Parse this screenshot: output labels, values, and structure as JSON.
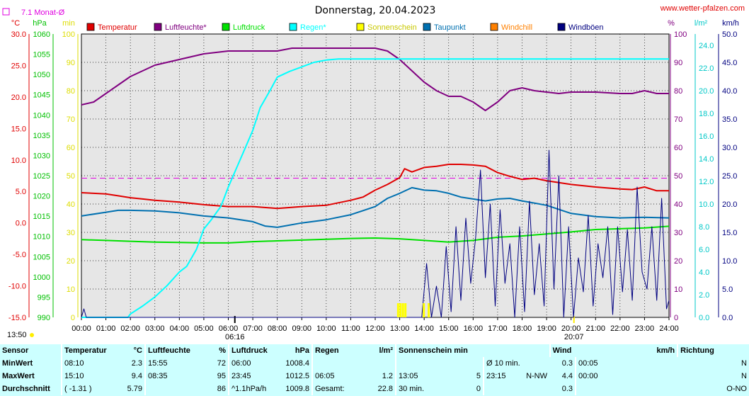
{
  "header": {
    "title": "Donnerstag, 20.04.2023",
    "site": "www.wetter-pfalzen.com",
    "monthly_avg": "7.1 Monat-Ø",
    "current_time": "13:50"
  },
  "axis_units": {
    "temp": "°C",
    "pressure": "hPa",
    "minutes": "min",
    "percent": "%",
    "rain": "l/m²",
    "wind": "km/h"
  },
  "legend": [
    {
      "label": "Temperatur",
      "color": "#e00000"
    },
    {
      "label": "Luftfeuchte*",
      "color": "#800080"
    },
    {
      "label": "Luftdruck",
      "color": "#00e000"
    },
    {
      "label": "Regen*",
      "color": "#00ffff"
    },
    {
      "label": "Sonnenschein",
      "color": "#ffff00"
    },
    {
      "label": "Taupunkt",
      "color": "#0070b0"
    },
    {
      "label": "Windchill",
      "color": "#ff8000"
    },
    {
      "label": "Windböen",
      "color": "#000080"
    }
  ],
  "chart_data": {
    "type": "line",
    "title": "Donnerstag, 20.04.2023",
    "x_ticks": [
      "00:00",
      "01:00",
      "02:00",
      "03:00",
      "04:00",
      "05:00",
      "06:00",
      "07:00",
      "08:00",
      "09:00",
      "10:00",
      "11:00",
      "12:00",
      "13:00",
      "14:00",
      "15:00",
      "16:00",
      "17:00",
      "18:00",
      "19:00",
      "20:00",
      "21:00",
      "22:00",
      "23:00",
      "24:00"
    ],
    "x_markers": [
      "06:16",
      "20:07"
    ],
    "axes": {
      "temp_c": {
        "range": [
          -15,
          30
        ],
        "ticks": [
          "30.0",
          "25.0",
          "20.0",
          "15.0",
          "10.0",
          "5.0",
          "0.0",
          "-5.0",
          "-10.0",
          "-15.0"
        ]
      },
      "pressure_hpa": {
        "range": [
          990,
          1060
        ],
        "ticks": [
          "1060",
          "1055",
          "1050",
          "1045",
          "1040",
          "1035",
          "1030",
          "1025",
          "1020",
          "1015",
          "1010",
          "1005",
          "1000",
          "995",
          "990"
        ]
      },
      "sun_min": {
        "range": [
          0,
          100
        ],
        "ticks": [
          "100",
          "90",
          "80",
          "70",
          "60",
          "50",
          "40",
          "30",
          "20",
          "10",
          "0"
        ]
      },
      "humidity_pct": {
        "range": [
          0,
          100
        ],
        "ticks": [
          "100",
          "90",
          "80",
          "70",
          "60",
          "50",
          "40",
          "30",
          "20",
          "10",
          "0"
        ]
      },
      "rain_lm2": {
        "range": [
          0,
          25
        ],
        "ticks": [
          "24.0",
          "22.0",
          "20.0",
          "18.0",
          "16.0",
          "14.0",
          "12.0",
          "10.0",
          "8.0",
          "6.0",
          "4.0",
          "2.0",
          "0.0"
        ]
      },
      "wind_kmh": {
        "range": [
          0,
          50
        ],
        "ticks": [
          "50.0",
          "45.0",
          "40.0",
          "35.0",
          "30.0",
          "25.0",
          "20.0",
          "15.0",
          "10.0",
          "5.0",
          "0.0"
        ]
      }
    },
    "monthly_avg_temp": 7.1,
    "series": [
      {
        "name": "Temperatur",
        "axis": "temp_c",
        "color": "#e00000",
        "x": [
          0,
          0.5,
          1,
          1.5,
          2,
          2.5,
          3,
          4,
          5,
          6,
          7,
          8,
          9,
          10,
          11,
          11.5,
          12,
          12.5,
          13,
          13.2,
          13.5,
          14,
          14.5,
          15,
          15.5,
          16,
          16.5,
          17,
          17.5,
          18,
          18.5,
          19,
          19.5,
          20,
          21,
          22,
          22.5,
          23,
          23.5,
          24
        ],
        "y": [
          4.8,
          4.7,
          4.6,
          4.3,
          4.0,
          3.8,
          3.6,
          3.3,
          2.9,
          2.6,
          2.6,
          2.3,
          2.6,
          2.8,
          3.6,
          4.1,
          5.2,
          6.1,
          7.2,
          8.6,
          8.1,
          8.8,
          9.0,
          9.3,
          9.3,
          9.2,
          9.0,
          8.0,
          7.4,
          6.9,
          7.1,
          6.7,
          6.4,
          6.1,
          5.7,
          5.4,
          5.3,
          5.7,
          5.1,
          5.1
        ]
      },
      {
        "name": "Luftfeuchte*",
        "axis": "humidity_pct",
        "color": "#800080",
        "x": [
          0,
          0.5,
          1,
          1.5,
          2,
          2.5,
          3,
          4,
          5,
          6,
          7,
          8,
          8.6,
          9,
          10,
          11,
          12,
          12.5,
          13,
          13.5,
          14,
          14.5,
          15,
          15.5,
          16,
          16.5,
          17,
          17.5,
          18,
          18.5,
          19,
          19.5,
          20,
          21,
          22,
          22.5,
          23,
          23.5,
          24
        ],
        "y": [
          75,
          76,
          79,
          82,
          85,
          87,
          89,
          91,
          93,
          94,
          94,
          94,
          95,
          95,
          95,
          95,
          95,
          94,
          91,
          87,
          83,
          80,
          78,
          78,
          76,
          73,
          76,
          80,
          81,
          80,
          79.5,
          79,
          79.5,
          79.5,
          79,
          79,
          80,
          79,
          79
        ]
      },
      {
        "name": "Luftdruck",
        "axis": "pressure_hpa",
        "color": "#00e000",
        "x": [
          0,
          1,
          2,
          3,
          4,
          5,
          6,
          7,
          8,
          9,
          10,
          11,
          12,
          13,
          14,
          15,
          16,
          17,
          18,
          19,
          20,
          21,
          22,
          23,
          24
        ],
        "y": [
          1009.2,
          1009.0,
          1008.8,
          1008.6,
          1008.5,
          1008.4,
          1008.4,
          1008.7,
          1008.9,
          1009.1,
          1009.3,
          1009.5,
          1009.6,
          1009.4,
          1009.0,
          1008.6,
          1009.0,
          1009.8,
          1010.1,
          1010.6,
          1011.1,
          1011.7,
          1011.9,
          1012.1,
          1012.5
        ]
      },
      {
        "name": "Regen*",
        "axis": "rain_lm2",
        "color": "#00ffff",
        "x": [
          0,
          1,
          1.9,
          2,
          2.5,
          3,
          3.5,
          4,
          4.3,
          4.7,
          5,
          5.3,
          5.7,
          6,
          6.3,
          6.6,
          7,
          7.3,
          7.7,
          8,
          8.5,
          9,
          9.5,
          10,
          10.5,
          11,
          12,
          13,
          14,
          15,
          16,
          17,
          17.5,
          18,
          19,
          20,
          21,
          22,
          23,
          24
        ],
        "y": [
          0,
          0,
          0,
          0.3,
          1.0,
          1.8,
          2.8,
          4.0,
          4.5,
          6.0,
          7.8,
          8.6,
          9.8,
          11.5,
          13.0,
          14.5,
          16.5,
          18.5,
          20.0,
          21.2,
          21.7,
          22.1,
          22.5,
          22.7,
          22.8,
          22.8,
          22.8,
          22.8,
          22.8,
          22.8,
          22.8,
          22.8,
          22.8,
          22.8,
          22.8,
          22.8,
          22.8,
          22.8,
          22.8,
          22.8
        ]
      },
      {
        "name": "Taupunkt",
        "axis": "temp_c",
        "color": "#0070b0",
        "x": [
          0,
          1,
          1.5,
          2,
          3,
          4,
          5,
          6,
          7,
          7.5,
          8,
          9,
          10,
          11,
          12,
          12.5,
          13,
          13.5,
          14,
          14.5,
          15,
          15.5,
          16,
          16.5,
          17,
          17.5,
          18,
          19,
          20,
          21,
          22,
          23,
          24
        ],
        "y": [
          1.1,
          1.7,
          2.0,
          2.0,
          1.9,
          1.6,
          1.1,
          0.8,
          0.2,
          -0.5,
          -0.7,
          0.0,
          0.5,
          1.3,
          2.6,
          3.9,
          4.7,
          5.6,
          5.2,
          5.1,
          4.7,
          4.1,
          3.8,
          3.5,
          3.8,
          3.9,
          3.5,
          2.8,
          1.5,
          1.0,
          0.8,
          0.9,
          0.8
        ]
      },
      {
        "name": "Windböen",
        "axis": "wind_kmh",
        "color": "#000080",
        "x": [
          0,
          0.1,
          0.2,
          0.3,
          13.9,
          14.1,
          14.3,
          14.5,
          14.7,
          14.9,
          15.1,
          15.3,
          15.5,
          15.7,
          15.9,
          16.1,
          16.3,
          16.5,
          16.7,
          16.9,
          17.1,
          17.3,
          17.5,
          17.7,
          17.9,
          18.1,
          18.3,
          18.5,
          18.7,
          18.9,
          19.1,
          19.3,
          19.5,
          19.7,
          19.9,
          20.1,
          20.3,
          20.5,
          20.7,
          20.9,
          21.1,
          21.3,
          21.5,
          21.7,
          21.9,
          22.1,
          22.3,
          22.5,
          22.7,
          22.9,
          23.1,
          23.3,
          23.5,
          23.7,
          23.9,
          24
        ],
        "y": [
          0,
          1.5,
          0,
          0,
          0,
          9.5,
          0,
          5.5,
          0,
          12.5,
          1.0,
          16.0,
          3.0,
          17.5,
          6.0,
          14.0,
          26.0,
          7.0,
          20.0,
          2.0,
          19.0,
          6.0,
          13.0,
          0,
          16.0,
          1.0,
          20.5,
          4.0,
          13.0,
          2.0,
          29.5,
          5.0,
          25.0,
          0,
          16.0,
          0,
          10.5,
          4.5,
          18.0,
          2.0,
          13.0,
          7.0,
          16.0,
          0.5,
          16.0,
          4.5,
          15.5,
          3.0,
          23.0,
          8.0,
          5.0,
          16.0,
          3.0,
          21.0,
          1.5,
          3.0
        ]
      },
      {
        "name": "Sonnenschein",
        "axis": "sun_min",
        "color": "#ffff00",
        "x": [
          12.95,
          13.05,
          13.15,
          13.25,
          14.0,
          14.2
        ],
        "y": [
          5,
          5,
          5,
          5,
          5,
          5
        ]
      }
    ]
  },
  "stats": {
    "headers": {
      "sensor": "Sensor",
      "temp": "Temperatur",
      "temp_unit": "°C",
      "hum": "Luftfeuchte",
      "hum_unit": "%",
      "press": "Luftdruck",
      "press_unit": "hPa",
      "rain": "Regen",
      "rain_unit": "l/m²",
      "sun": "Sonnenschein min",
      "wind": "Wind",
      "wind_unit": "km/h",
      "dir": "Richtung"
    },
    "rows": [
      {
        "label": "MinWert",
        "temp_time": "08:10",
        "temp_val": "2.3",
        "hum_time": "15:55",
        "hum_val": "72",
        "press_time": "06:00",
        "press_val": "1008.4",
        "rain_time": "",
        "rain_val": "",
        "sun_time": "",
        "sun_val": "",
        "wind_time": "Ø 10 min.",
        "wind_dir": "",
        "wind_val": "0.3",
        "dir_time": "00:05",
        "dir_val": "N"
      },
      {
        "label": "MaxWert",
        "temp_time": "15:10",
        "temp_val": "9.4",
        "hum_time": "08:35",
        "hum_val": "95",
        "press_time": "23:45",
        "press_val": "1012.5",
        "rain_time": "06:05",
        "rain_val": "1.2",
        "sun_time": "13:05",
        "sun_val": "5",
        "wind_time": "23:15",
        "wind_dir": "N-NW",
        "wind_val": "4.4",
        "dir_time": "00:00",
        "dir_val": "N"
      },
      {
        "label": "Durchschnitt",
        "temp_time": "( -1.31 )",
        "temp_val": "5.79",
        "hum_time": "",
        "hum_val": "86",
        "press_time": "^1.1hPa/h",
        "press_val": "1009.8",
        "rain_time": "Gesamt:",
        "rain_val": "22.8",
        "sun_time": "30 min.",
        "sun_val": "0",
        "wind_time": "",
        "wind_dir": "",
        "wind_val": "0.3",
        "dir_time": "",
        "dir_val": "O-NO"
      }
    ]
  }
}
